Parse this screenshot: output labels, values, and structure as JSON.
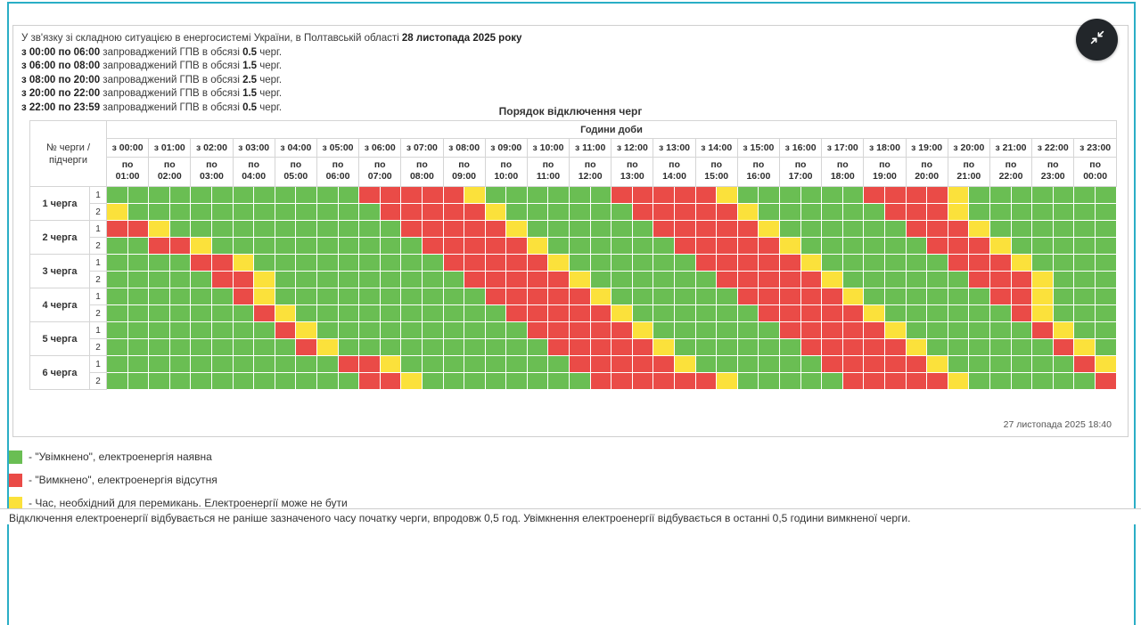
{
  "colors": {
    "on": "#6abe53",
    "off": "#ea4b47",
    "switch": "#fbe13b",
    "accent_teal": "#2aaec6",
    "button_bg": "#22262a"
  },
  "header": {
    "lines": [
      [
        {
          "t": "У зв'язку зі складною ситуацією в енергосистемі України, в Полтавській області ",
          "b": false
        },
        {
          "t": "28 листопада 2025 року",
          "b": true
        }
      ],
      [
        {
          "t": "з 00:00 по 06:00",
          "b": true
        },
        {
          "t": " запроваджений ГПВ в обсязі ",
          "b": false
        },
        {
          "t": "0.5",
          "b": true
        },
        {
          "t": " черг.",
          "b": false
        }
      ],
      [
        {
          "t": "з 06:00 по 08:00",
          "b": true
        },
        {
          "t": " запроваджений ГПВ в обсязі ",
          "b": false
        },
        {
          "t": "1.5",
          "b": true
        },
        {
          "t": " черг.",
          "b": false
        }
      ],
      [
        {
          "t": "з 08:00 по 20:00",
          "b": true
        },
        {
          "t": " запроваджений ГПВ в обсязі ",
          "b": false
        },
        {
          "t": "2.5",
          "b": true
        },
        {
          "t": " черг.",
          "b": false
        }
      ],
      [
        {
          "t": "з 20:00 по 22:00",
          "b": true
        },
        {
          "t": " запроваджений ГПВ в обсязі ",
          "b": false
        },
        {
          "t": "1.5",
          "b": true
        },
        {
          "t": " черг.",
          "b": false
        }
      ],
      [
        {
          "t": "з 22:00 по 23:59",
          "b": true
        },
        {
          "t": " запроваджений ГПВ в обсязі ",
          "b": false
        },
        {
          "t": "0.5",
          "b": true
        },
        {
          "t": " черг.",
          "b": false
        }
      ]
    ]
  },
  "table": {
    "title": "Порядок відключення черг",
    "corner_header": "№ черги / підчерги",
    "hours_header": "Години доби",
    "columns": [
      {
        "from": "з 00:00",
        "to_label": "по",
        "to": "01:00"
      },
      {
        "from": "з 01:00",
        "to_label": "по",
        "to": "02:00"
      },
      {
        "from": "з 02:00",
        "to_label": "по",
        "to": "03:00"
      },
      {
        "from": "з 03:00",
        "to_label": "по",
        "to": "04:00"
      },
      {
        "from": "з 04:00",
        "to_label": "по",
        "to": "05:00"
      },
      {
        "from": "з 05:00",
        "to_label": "по",
        "to": "06:00"
      },
      {
        "from": "з 06:00",
        "to_label": "по",
        "to": "07:00"
      },
      {
        "from": "з 07:00",
        "to_label": "по",
        "to": "08:00"
      },
      {
        "from": "з 08:00",
        "to_label": "по",
        "to": "09:00"
      },
      {
        "from": "з 09:00",
        "to_label": "по",
        "to": "10:00"
      },
      {
        "from": "з 10:00",
        "to_label": "по",
        "to": "11:00"
      },
      {
        "from": "з 11:00",
        "to_label": "по",
        "to": "12:00"
      },
      {
        "from": "з 12:00",
        "to_label": "по",
        "to": "13:00"
      },
      {
        "from": "з 13:00",
        "to_label": "по",
        "to": "14:00"
      },
      {
        "from": "з 14:00",
        "to_label": "по",
        "to": "15:00"
      },
      {
        "from": "з 15:00",
        "to_label": "по",
        "to": "16:00"
      },
      {
        "from": "з 16:00",
        "to_label": "по",
        "to": "17:00"
      },
      {
        "from": "з 17:00",
        "to_label": "по",
        "to": "18:00"
      },
      {
        "from": "з 18:00",
        "to_label": "по",
        "to": "19:00"
      },
      {
        "from": "з 19:00",
        "to_label": "по",
        "to": "20:00"
      },
      {
        "from": "з 20:00",
        "to_label": "по",
        "to": "21:00"
      },
      {
        "from": "з 21:00",
        "to_label": "по",
        "to": "22:00"
      },
      {
        "from": "з 22:00",
        "to_label": "по",
        "to": "23:00"
      },
      {
        "from": "з 23:00",
        "to_label": "по",
        "to": "00:00"
      }
    ],
    "cell_legend": "48 half-hour cells per row: G=on, R=off, Y=switching",
    "queues": [
      {
        "label": "1 черга",
        "subrows": [
          {
            "num": "1",
            "cells": "GGGGGGGGGGGGRRRRRYGGGGGGRRRRRYGGGGGGRRRRYGGGGGGG"
          },
          {
            "num": "2",
            "cells": "YGGGGGGGGGGGGRRRRRYGGGGGGRRRRRYGGGGGGRRRYGGGGGGG"
          }
        ]
      },
      {
        "label": "2 черга",
        "subrows": [
          {
            "num": "1",
            "cells": "RRYGGGGGGGGGGGRRRRRYGGGGGGRRRRRYGGGGGGRRRYGGGGGG"
          },
          {
            "num": "2",
            "cells": "GGRRYGGGGGGGGGGRRRRRYGGGGGGRRRRRYGGGGGGRRRYGGGGG"
          }
        ]
      },
      {
        "label": "3 черга",
        "subrows": [
          {
            "num": "1",
            "cells": "GGGGRRYGGGGGGGGGRRRRRYGGGGGGRRRRRYGGGGGGRRRYGGGG"
          },
          {
            "num": "2",
            "cells": "GGGGGRRYGGGGGGGGGRRRRRYGGGGGGRRRRRYGGGGGGRRRYGGG"
          }
        ]
      },
      {
        "label": "4 черга",
        "subrows": [
          {
            "num": "1",
            "cells": "GGGGGGRYGGGGGGGGGGRRRRRYGGGGGGRRRRRYGGGGGGRRYGGG"
          },
          {
            "num": "2",
            "cells": "GGGGGGGRYGGGGGGGGGGRRRRRYGGGGGGRRRRRYGGGGGGRYGGG"
          }
        ]
      },
      {
        "label": "5 черга",
        "subrows": [
          {
            "num": "1",
            "cells": "GGGGGGGGRYGGGGGGGGGGRRRRRYGGGGGGRRRRRYGGGGGGRYGG"
          },
          {
            "num": "2",
            "cells": "GGGGGGGGGRYGGGGGGGGGGRRRRRYGGGGGGRRRRRYGGGGGGRYG"
          }
        ]
      },
      {
        "label": "6 черга",
        "subrows": [
          {
            "num": "1",
            "cells": "GGGGGGGGGGGRRYGGGGGGGGRRRRRYGGGGGGRRRRRYGGGGGGRY"
          },
          {
            "num": "2",
            "cells": "GGGGGGGGGGGGRRYGGGGGGGGRRRRRRYGGGGGRRRRRYGGGGGGR"
          }
        ]
      }
    ],
    "timestamp": "27 листопада 2025 18:40"
  },
  "legend": {
    "items": [
      {
        "color_key": "on",
        "text": "- \"Увімкнено\", електроенергія наявна"
      },
      {
        "color_key": "off",
        "text": "- \"Вимкнено\", електроенергія відсутня"
      },
      {
        "color_key": "switch",
        "text": "- Час, необхідний для перемикань. Електроенергії може не бути"
      }
    ]
  },
  "footer": {
    "note": "Відключення електроенергії відбувається не раніше зазначеного часу початку черги, впродовж 0,5 год. Увімкнення електроенергії відбувається в останні 0,5 години вимкненої черги."
  },
  "controls": {
    "collapse_icon": "collapse-icon"
  }
}
